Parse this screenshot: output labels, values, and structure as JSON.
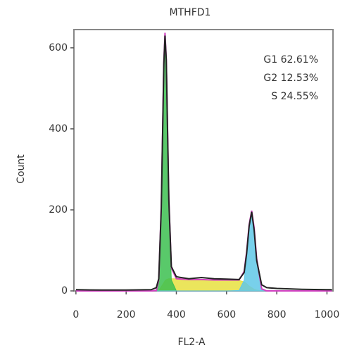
{
  "chart_data": {
    "type": "line",
    "title": "MTHFD1",
    "x_label": "FL2-A",
    "y_label": "Count",
    "annotations": [
      "G1 62.61%",
      "G2 12.53%",
      "S 24.55%"
    ],
    "x": [
      0,
      100,
      200,
      300,
      320,
      330,
      340,
      350,
      355,
      360,
      370,
      380,
      400,
      450,
      500,
      550,
      600,
      650,
      670,
      680,
      690,
      700,
      710,
      720,
      740,
      760,
      800,
      900,
      1000,
      1020
    ],
    "series": [
      {
        "color": "#e8e040",
        "fill": true,
        "values": [
          0,
          0,
          0,
          0,
          0,
          0,
          10,
          20,
          25,
          28,
          30,
          30,
          30,
          28,
          28,
          27,
          27,
          26,
          22,
          18,
          12,
          8,
          4,
          2,
          0,
          0,
          0,
          0,
          0,
          0
        ]
      },
      {
        "color": "#3cc050",
        "fill": true,
        "values": [
          0,
          0,
          0,
          0,
          1,
          27,
          200,
          545,
          612,
          545,
          200,
          27,
          0,
          0,
          0,
          0,
          0,
          0,
          0,
          0,
          0,
          0,
          0,
          0,
          0,
          0,
          0,
          0,
          0,
          0
        ]
      },
      {
        "color": "#60c8e8",
        "fill": true,
        "values": [
          0,
          0,
          0,
          0,
          0,
          0,
          0,
          0,
          0,
          0,
          0,
          0,
          0,
          0,
          0,
          0,
          0,
          1,
          26,
          78,
          152,
          190,
          152,
          78,
          5,
          0,
          0,
          0,
          0,
          0
        ]
      },
      {
        "color": "#d040c0",
        "fill": false,
        "values": [
          0,
          0,
          0,
          0,
          1,
          27,
          210,
          565,
          637,
          573,
          230,
          57,
          30,
          28,
          28,
          27,
          27,
          27,
          48,
          96,
          164,
          198,
          156,
          80,
          5,
          0,
          0,
          0,
          0,
          0
        ]
      },
      {
        "color": "#222222",
        "fill": false,
        "values": [
          3,
          2,
          2,
          3,
          8,
          30,
          205,
          560,
          630,
          570,
          225,
          60,
          35,
          30,
          33,
          30,
          29,
          28,
          45,
          92,
          160,
          195,
          150,
          75,
          15,
          8,
          6,
          4,
          3,
          3
        ]
      }
    ],
    "xlim": [
      -8,
      1024
    ],
    "ylim": [
      0,
      645
    ],
    "xticks": [
      0,
      200,
      400,
      600,
      800,
      1000
    ],
    "yticks": [
      0,
      200,
      400,
      600
    ]
  }
}
